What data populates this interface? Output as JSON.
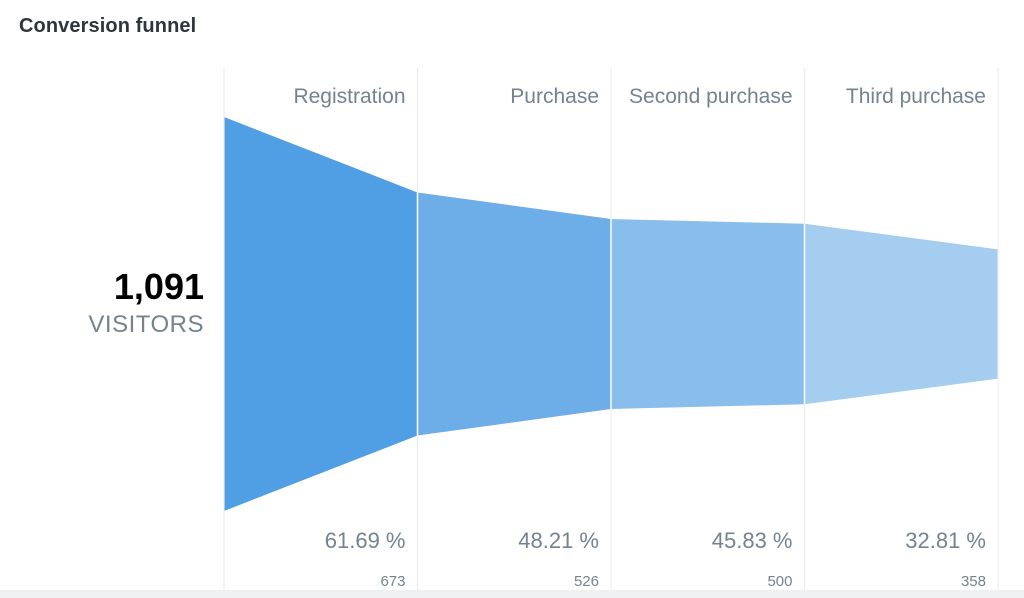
{
  "card": {
    "title": "Conversion funnel"
  },
  "chart_data": {
    "type": "funnel",
    "title": "Conversion funnel",
    "total": {
      "value": "1,091",
      "label": "VISITORS",
      "count": 1091
    },
    "steps": [
      {
        "name": "Registration",
        "percent": 61.69,
        "percent_label": "61.69 %",
        "count": 673,
        "count_label": "673"
      },
      {
        "name": "Purchase",
        "percent": 48.21,
        "percent_label": "48.21 %",
        "count": 526,
        "count_label": "526"
      },
      {
        "name": "Second purchase",
        "percent": 45.83,
        "percent_label": "45.83 %",
        "count": 500,
        "count_label": "500"
      },
      {
        "name": "Third purchase",
        "percent": 32.81,
        "percent_label": "32.81 %",
        "count": 358,
        "count_label": "358"
      }
    ],
    "colors": [
      "#509ee3",
      "#6daee8",
      "#89bdec",
      "#a5cdf0"
    ],
    "divider_color": "#e8ecef",
    "label_color": "#74838f"
  }
}
